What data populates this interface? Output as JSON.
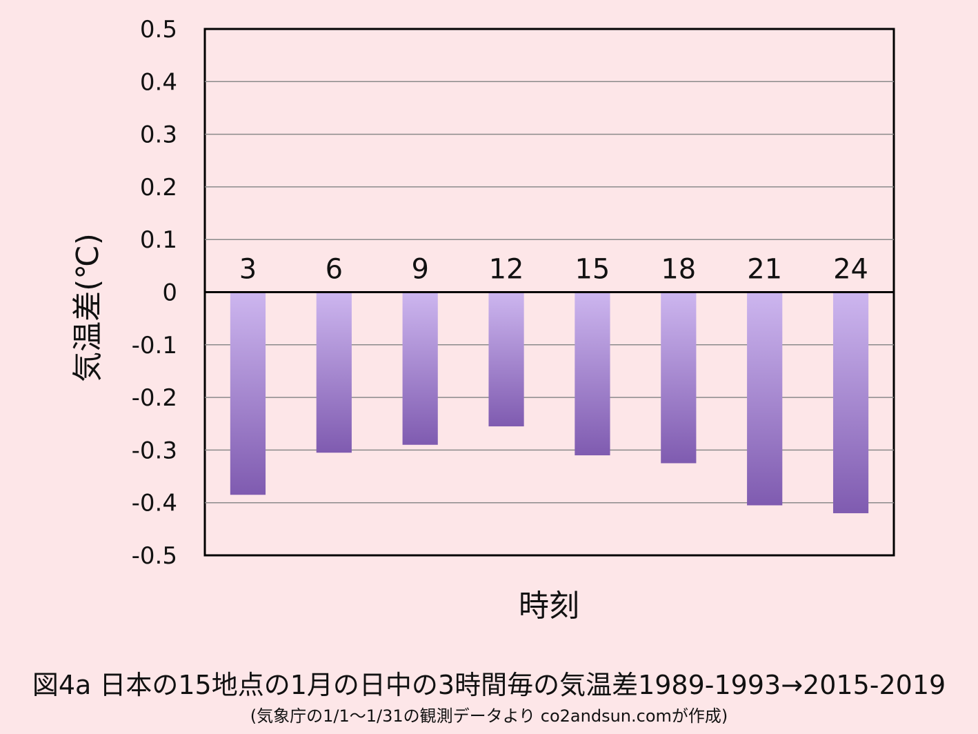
{
  "chart_data": {
    "type": "bar",
    "categories": [
      "3",
      "6",
      "9",
      "12",
      "15",
      "18",
      "21",
      "24"
    ],
    "values": [
      -0.385,
      -0.305,
      -0.29,
      -0.255,
      -0.31,
      -0.325,
      -0.405,
      -0.42
    ],
    "xlabel": "時刻",
    "ylabel": "気温差(℃)",
    "ylim": [
      -0.5,
      0.5
    ],
    "yticks": [
      "0.5",
      "0.4",
      "0.3",
      "0.2",
      "0.1",
      "0",
      "-0.1",
      "-0.2",
      "-0.3",
      "-0.4",
      "-0.5"
    ],
    "grid": true,
    "category_labels_position": "above-zero-line",
    "bar_gradient": [
      "#cdb6ef",
      "#7f5bb0"
    ]
  },
  "caption": "図4a  日本の15地点の1月の日中の3時間毎の気温差1989-1993→2015-2019",
  "note": "(気象庁の1/1〜1/31の観測データより co2andsun.comが作成)"
}
